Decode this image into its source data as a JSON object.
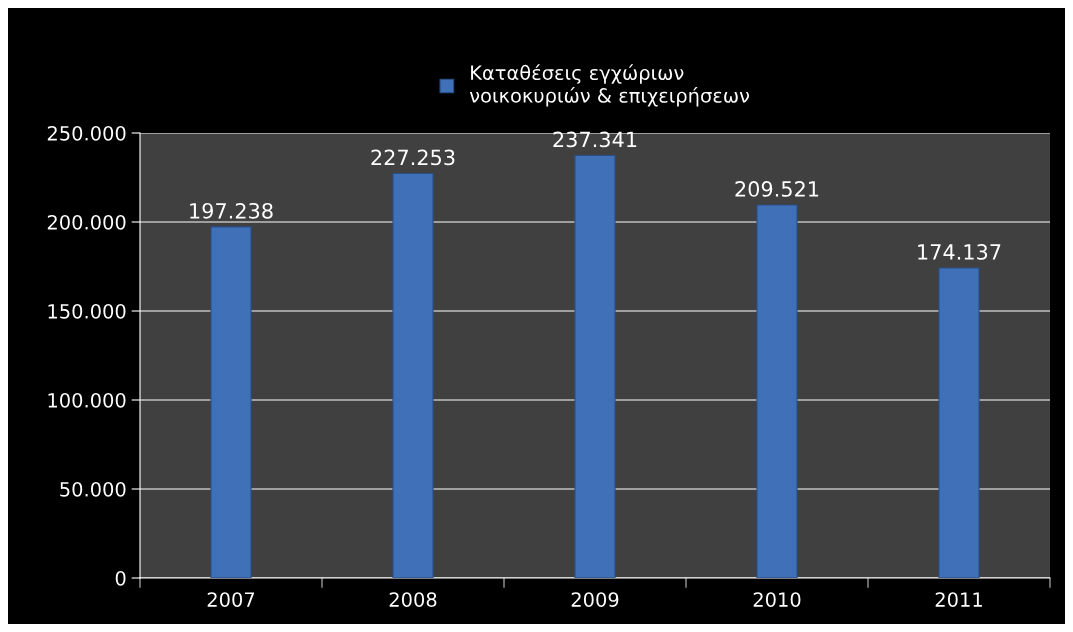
{
  "chart_data": {
    "type": "bar",
    "categories": [
      "2007",
      "2008",
      "2009",
      "2010",
      "2011"
    ],
    "series": [
      {
        "name": "Καταθέσεις εγχώριων\nνοικοκυριών & επιχειρήσεων",
        "color": "#3f70b8",
        "values": [
          197238,
          227253,
          237341,
          209521,
          174137
        ],
        "value_labels": [
          "197.238",
          "227.253",
          "237.341",
          "209.521",
          "174.137"
        ]
      }
    ],
    "ylim": [
      0,
      250000
    ],
    "yticks": [
      {
        "value": 0,
        "label": "0"
      },
      {
        "value": 50000,
        "label": "50.000"
      },
      {
        "value": 100000,
        "label": "100.000"
      },
      {
        "value": 150000,
        "label": "150.000"
      },
      {
        "value": 200000,
        "label": "200.000"
      },
      {
        "value": 250000,
        "label": "250.000"
      }
    ],
    "grid": "y",
    "legend": "top"
  }
}
